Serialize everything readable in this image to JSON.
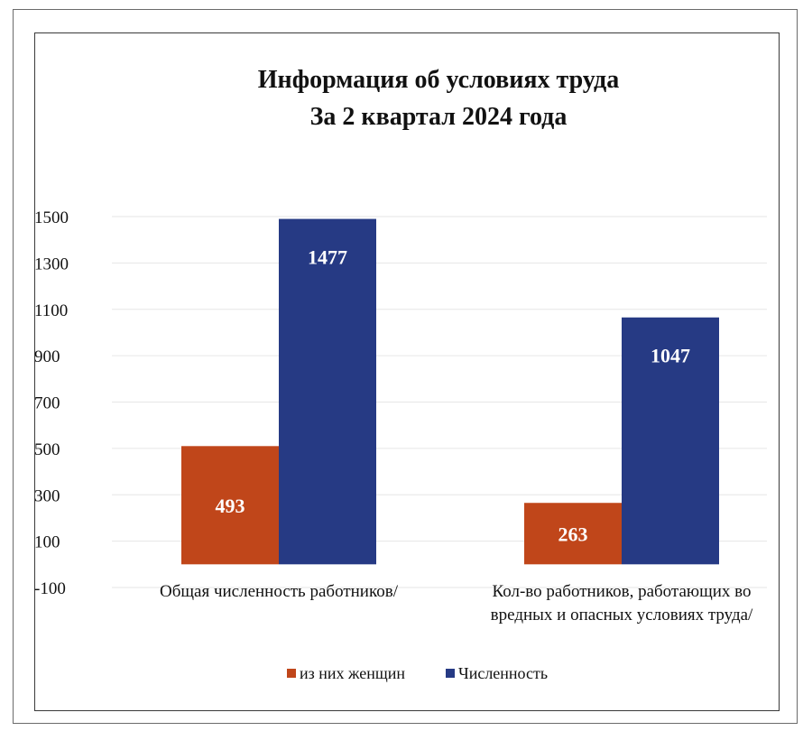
{
  "chart_data": {
    "type": "bar",
    "title_lines": [
      "Информация об условиях труда",
      "За 2 квартал 2024 года"
    ],
    "categories": [
      [
        "Общая численность работников/"
      ],
      [
        "Кол-во работников, работающих во",
        "вредных и опасных условиях труда/"
      ]
    ],
    "series": [
      {
        "name": "из них женщин",
        "values": [
          493,
          263
        ],
        "color": "#c0461a"
      },
      {
        "name": "Численность",
        "values": [
          1477,
          1047
        ],
        "color": "#263a84"
      }
    ],
    "y_ticks": [
      "1500",
      "1300",
      "1100",
      "900",
      "700",
      "500",
      "300",
      "100",
      "-100"
    ],
    "ylim": [
      -100,
      1500
    ],
    "bar_tops": [
      [
        510,
        1490
      ],
      [
        265,
        1065
      ]
    ],
    "grid": true,
    "legend_position": "bottom"
  }
}
